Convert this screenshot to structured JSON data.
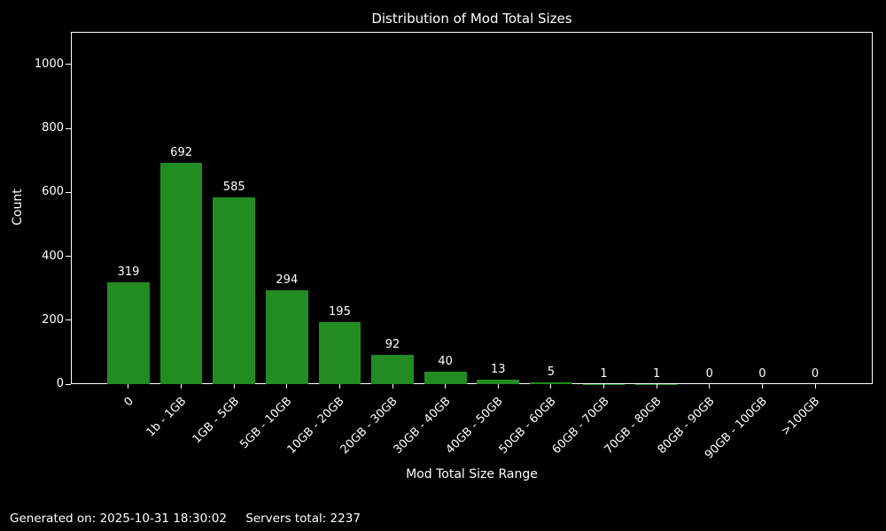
{
  "figure": {
    "background": "#000000",
    "text_color": "#ffffff",
    "spine_color": "#ffffff"
  },
  "chart_data": {
    "type": "bar",
    "title": "Distribution of Mod Total Sizes",
    "xlabel": "Mod Total Size Range",
    "ylabel": "Count",
    "categories": [
      "0",
      "1b - 1GB",
      "1GB - 5GB",
      "5GB - 10GB",
      "10GB - 20GB",
      "20GB - 30GB",
      "30GB - 40GB",
      "40GB - 50GB",
      "50GB - 60GB",
      "60GB - 70GB",
      "70GB - 80GB",
      "80GB - 90GB",
      "90GB - 100GB",
      ">100GB"
    ],
    "values": [
      319,
      692,
      585,
      294,
      195,
      92,
      40,
      13,
      5,
      1,
      1,
      0,
      0,
      0
    ],
    "yticks": [
      0,
      200,
      400,
      600,
      800,
      1000
    ],
    "ylim": [
      0,
      1102
    ],
    "xlim_units": [
      -1.09,
      14.09
    ],
    "bar_width_units": 0.8,
    "bar_color": "#228B22",
    "grid": false,
    "legend": null,
    "xtick_rotation_deg": 45
  },
  "footer": {
    "generated_on": "Generated on: 2025-10-31 18:30:02",
    "servers_total": "Servers total: 2237"
  }
}
